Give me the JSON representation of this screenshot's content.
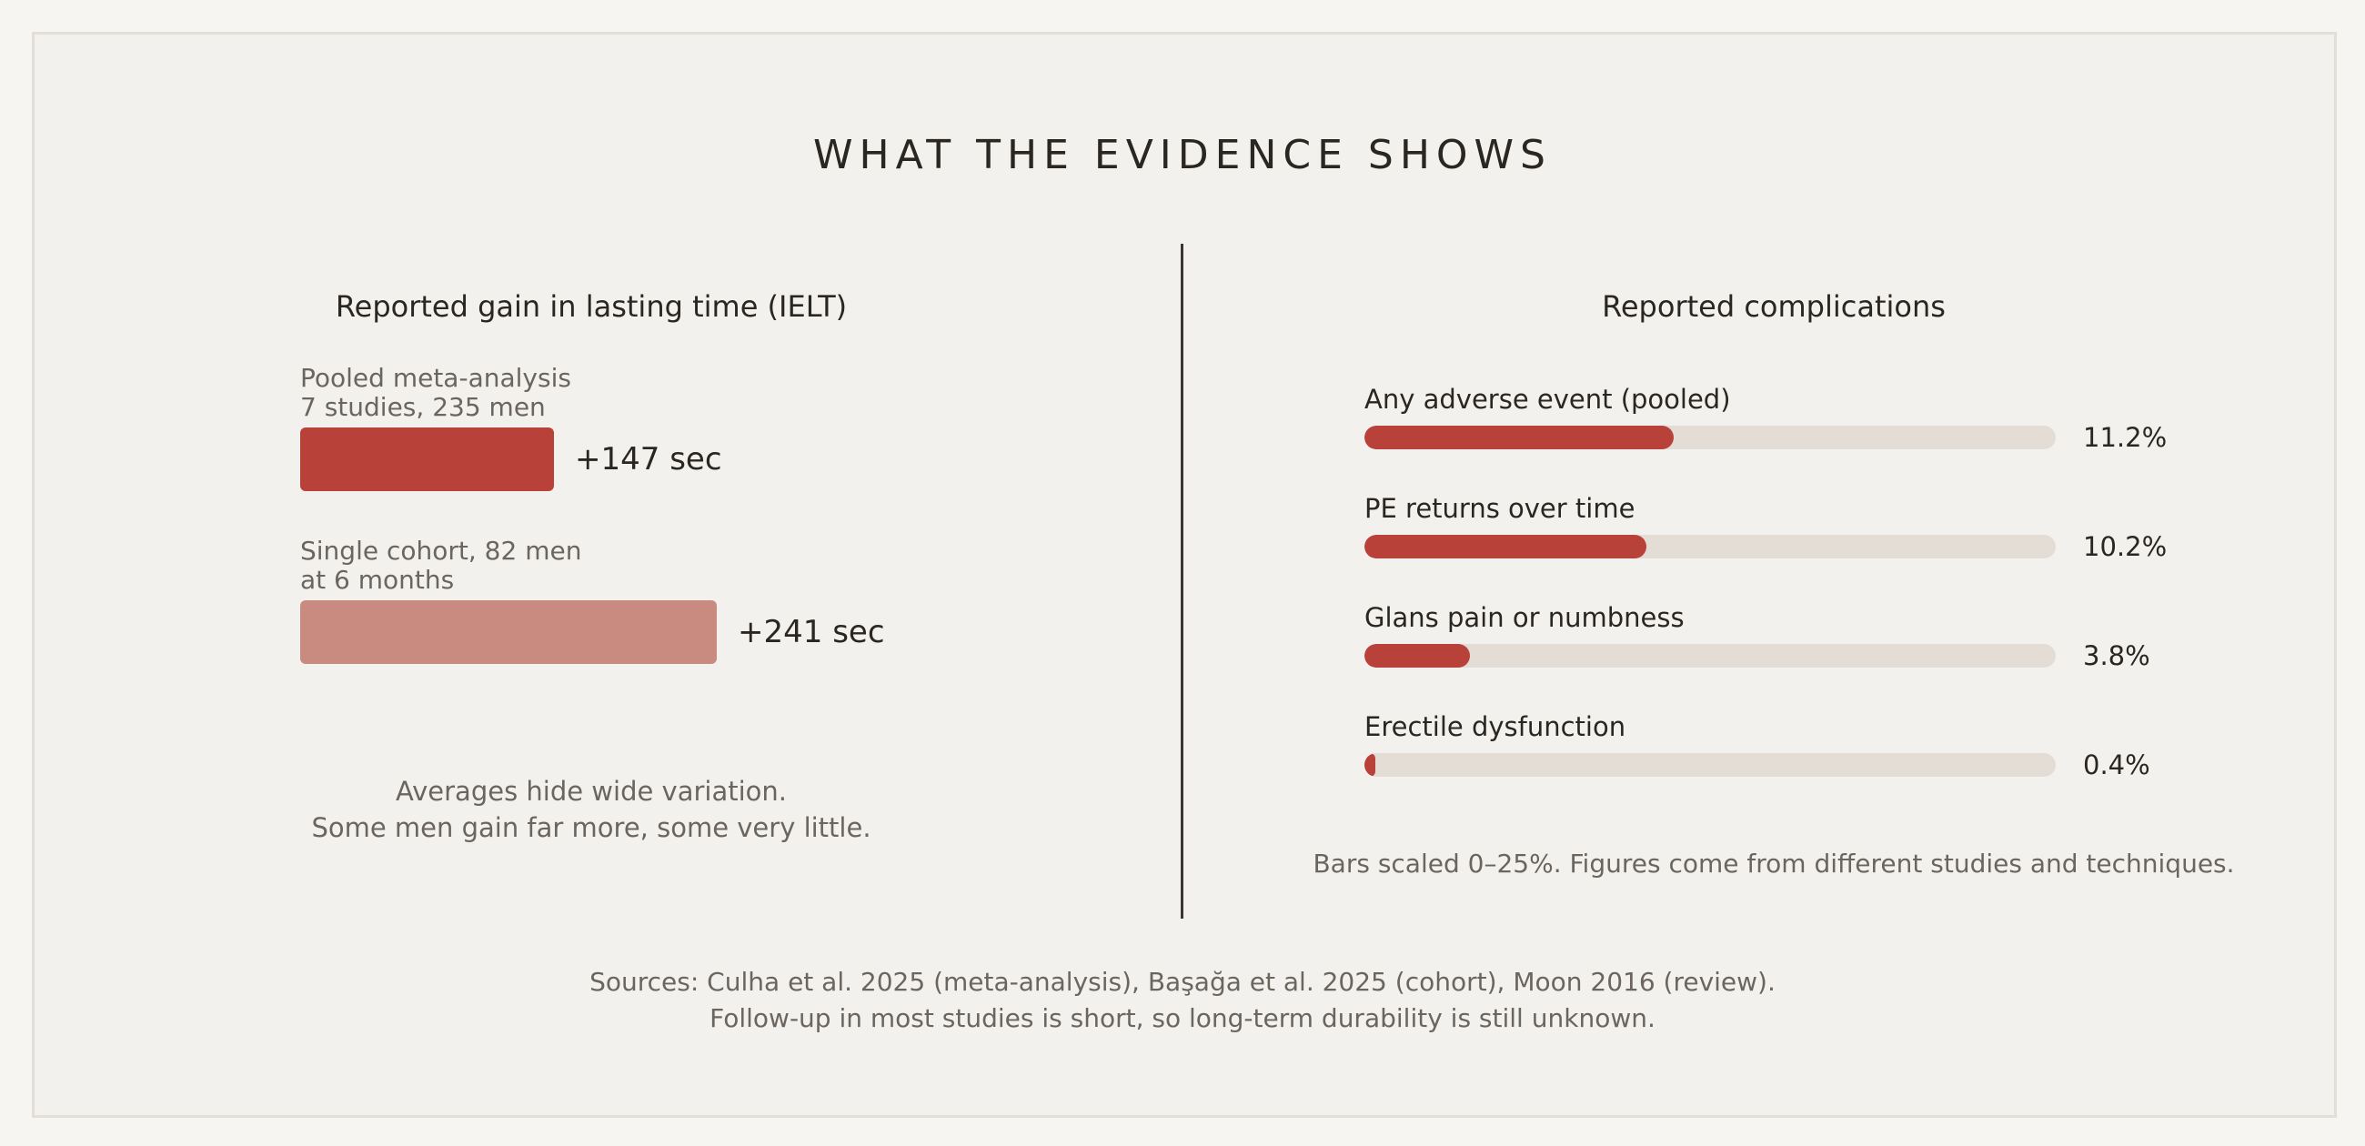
{
  "title": "WHAT THE EVIDENCE SHOWS",
  "colors": {
    "primary_bar": "#b8423a",
    "secondary_bar": "#c98a7f",
    "track": "#e4ddd5"
  },
  "chart_data": [
    {
      "type": "bar",
      "orientation": "horizontal",
      "title": "Reported gain in lasting time (IELT)",
      "categories": [
        [
          "Pooled meta-analysis",
          "7 studies, 235 men"
        ],
        [
          "Single cohort, 82 men",
          "at 6 months"
        ]
      ],
      "values": [
        147,
        241
      ],
      "value_labels": [
        "+147 sec",
        "+241 sec"
      ],
      "unit": "sec",
      "note": [
        "Averages hide wide variation.",
        "Some men gain far more, some very little."
      ]
    },
    {
      "type": "bar",
      "orientation": "horizontal",
      "title": "Reported complications",
      "categories": [
        "Any adverse event (pooled)",
        "PE returns over time",
        "Glans pain or numbness",
        "Erectile dysfunction"
      ],
      "values": [
        11.2,
        10.2,
        3.8,
        0.4
      ],
      "value_labels": [
        "11.2%",
        "10.2%",
        "3.8%",
        "0.4%"
      ],
      "unit": "%",
      "xlim": [
        0,
        25
      ],
      "note": "Bars scaled 0–25%. Figures come from different studies and techniques."
    }
  ],
  "sources": [
    "Sources: Culha et al. 2025 (meta-analysis), Başağa et al. 2025 (cohort), Moon 2016 (review).",
    "Follow-up in most studies is short, so long-term durability is still unknown."
  ]
}
